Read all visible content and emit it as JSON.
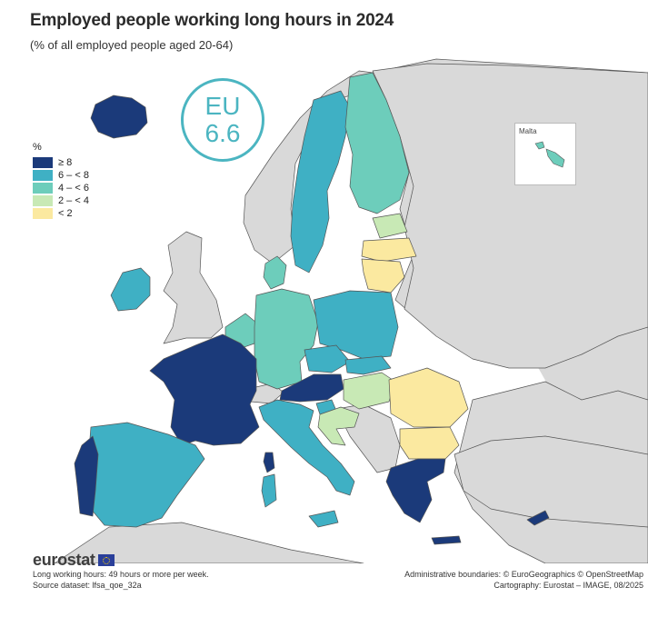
{
  "title": "Employed people working long hours in 2024",
  "subtitle": "(% of all employed people aged 20-64)",
  "eu_value": {
    "label": "EU",
    "value": "6.6"
  },
  "legend": {
    "unit": "%",
    "classes": [
      {
        "label": "≥ 8",
        "color": "#1b3a7a"
      },
      {
        "label": "6 – < 8",
        "color": "#3fb0c4"
      },
      {
        "label": "4 – < 6",
        "color": "#6dcdbb"
      },
      {
        "label": "2 – < 4",
        "color": "#c8e9b5"
      },
      {
        "label": "< 2",
        "color": "#fbe9a0"
      }
    ]
  },
  "non_eu_color": "#d9d9d9",
  "inset": {
    "label": "Malta"
  },
  "logo": "eurostat",
  "notes": {
    "definition": "Long working hours: 49 hours or more per week.",
    "source": "Source dataset: lfsa_qoe_32a"
  },
  "credits": {
    "boundaries": "Administrative boundaries: © EuroGeographics © OpenStreetMap",
    "cartography": "Cartography: Eurostat – IMAGE, 08/2025"
  }
}
